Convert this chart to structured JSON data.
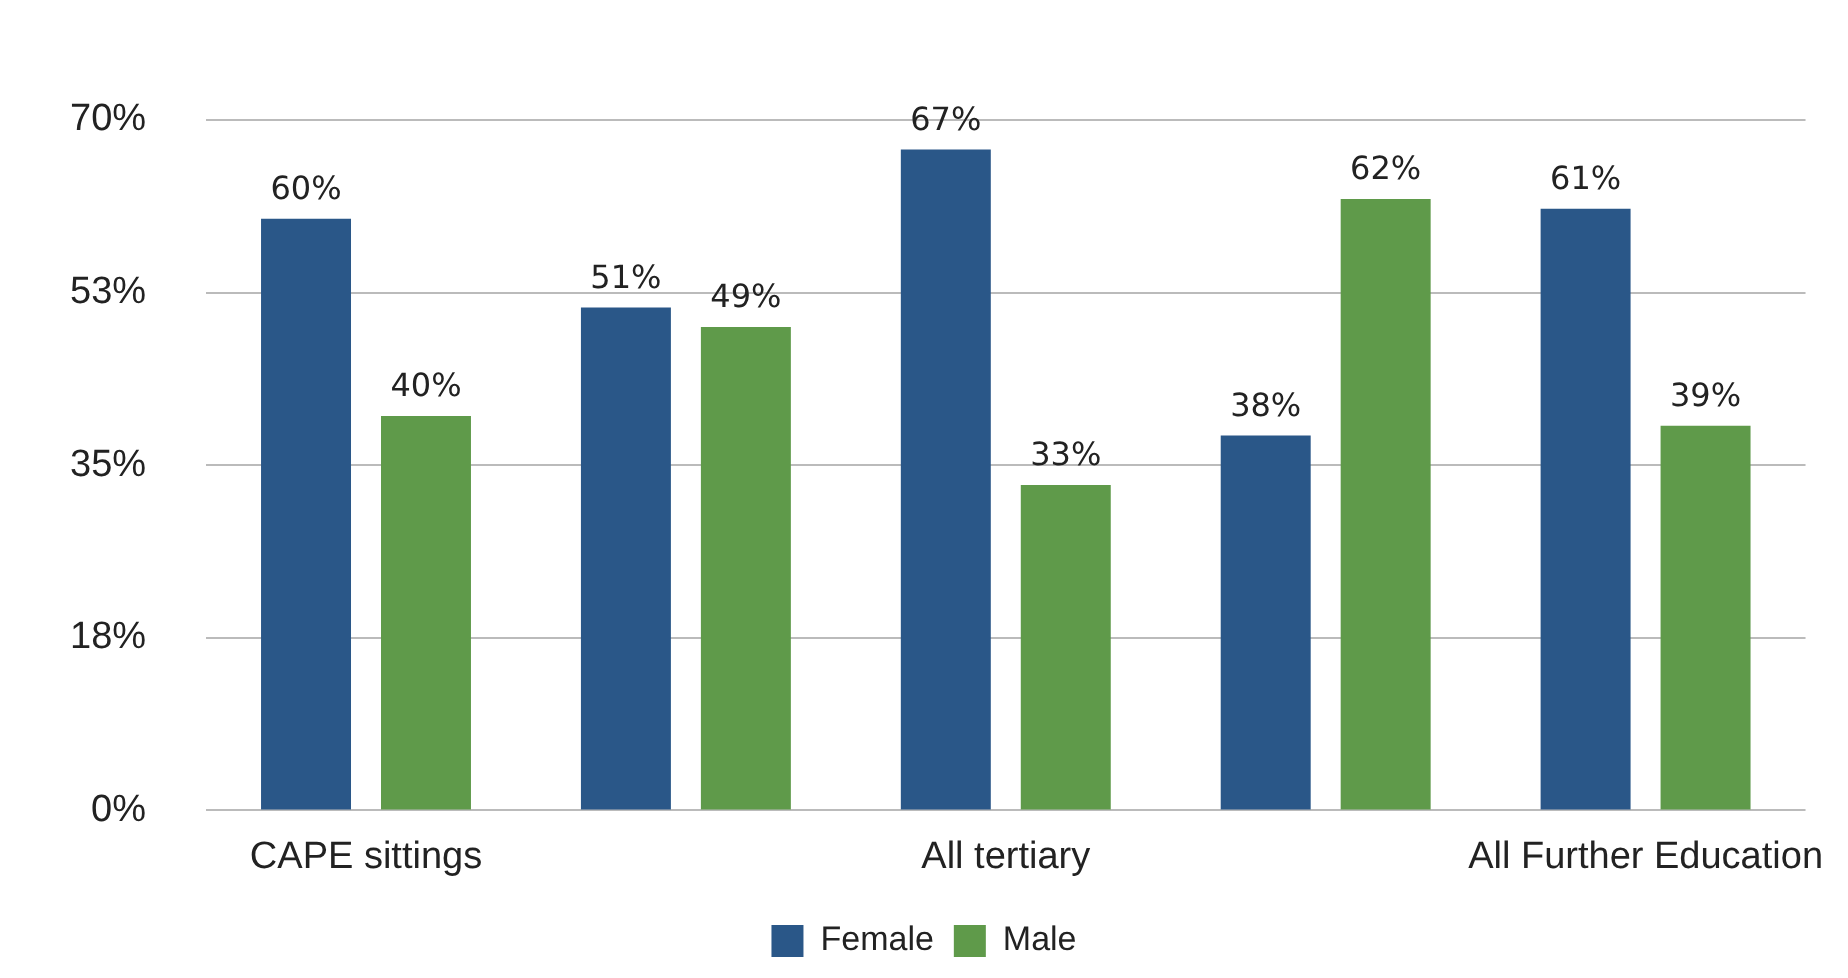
{
  "chart_data": {
    "type": "bar",
    "categories": [
      "CAPE sittings",
      null,
      "All tertiary",
      null,
      "All Further Education"
    ],
    "series": [
      {
        "name": "Female",
        "color": "#2a5788",
        "values": [
          60,
          51,
          67,
          38,
          61
        ]
      },
      {
        "name": "Male",
        "color": "#5f9a4a",
        "values": [
          40,
          49,
          33,
          62,
          39
        ]
      }
    ],
    "ylim": [
      0,
      70
    ],
    "yticks": [
      {
        "value": 0,
        "label": "0%"
      },
      {
        "value": 17.5,
        "label": "18%"
      },
      {
        "value": 35,
        "label": "35%"
      },
      {
        "value": 52.5,
        "label": "53%"
      },
      {
        "value": 70,
        "label": "70%"
      }
    ],
    "grid": "y",
    "legend": "bottom",
    "value_labels": [
      [
        "60%",
        "51%",
        "67%",
        "38%",
        "61%"
      ],
      [
        "40%",
        "49%",
        "33%",
        "62%",
        "39%"
      ]
    ]
  }
}
